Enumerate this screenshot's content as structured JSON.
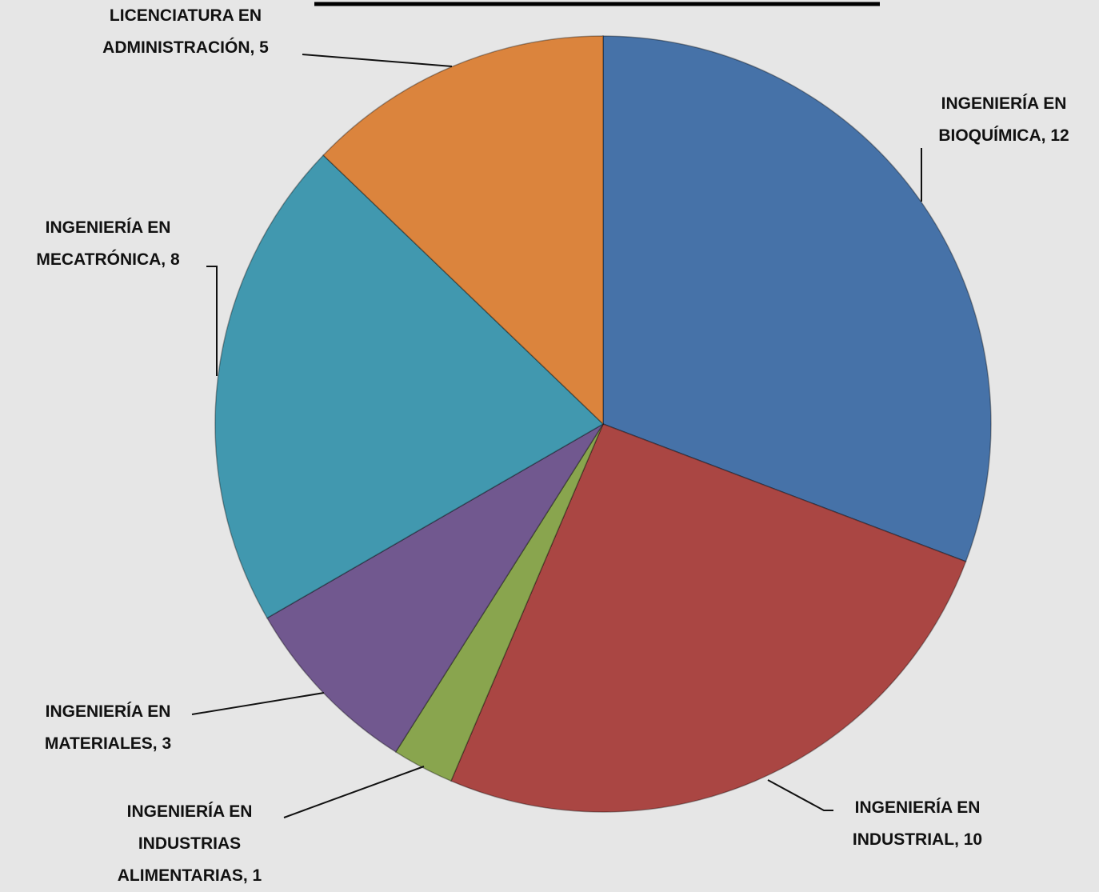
{
  "chart_data": {
    "type": "pie",
    "categories": [
      "INGENIERÍA EN BIOQUÍMICA",
      "INGENIERÍA EN INDUSTRIAL",
      "INGENIERÍA EN INDUSTRIAS ALIMENTARIAS",
      "INGENIERÍA EN MATERIALES",
      "INGENIERÍA EN MECATRÓNICA",
      "LICENCIATURA EN ADMINISTRACIÓN"
    ],
    "values": [
      12,
      10,
      1,
      3,
      8,
      5
    ],
    "colors": [
      "#4672a8",
      "#aa4643",
      "#89a54e",
      "#71588f",
      "#4198af",
      "#db843d"
    ]
  }
}
